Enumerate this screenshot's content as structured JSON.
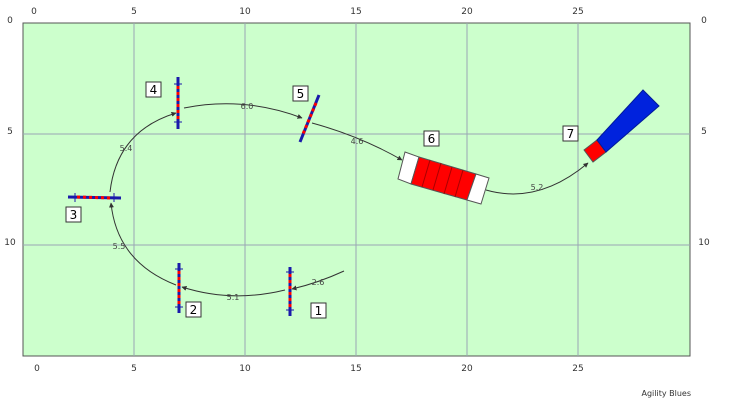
{
  "course": {
    "x_ticks": [
      "0",
      "5",
      "10",
      "15",
      "20",
      "25"
    ],
    "y_ticks": [
      "0",
      "5",
      "10"
    ],
    "obstacles": [
      {
        "number": "1",
        "type": "hurdle"
      },
      {
        "number": "2",
        "type": "hurdle"
      },
      {
        "number": "3",
        "type": "hurdle"
      },
      {
        "number": "4",
        "type": "hurdle"
      },
      {
        "number": "5",
        "type": "hurdle"
      },
      {
        "number": "6",
        "type": "tunnel"
      },
      {
        "number": "7",
        "type": "tunnel-entry"
      }
    ],
    "segment_distances": [
      "2.6",
      "5.1",
      "5.5",
      "5.4",
      "6.0",
      "4.6",
      "5.2"
    ],
    "credit": "Agility Blues",
    "colors": {
      "field": "#ccffcc",
      "grid": "#9aa6b4",
      "path": "#333333",
      "bar_red": "#ff0000",
      "pole_blue": "#1a1aaa",
      "tunnel_blue": "#0022dd"
    }
  }
}
